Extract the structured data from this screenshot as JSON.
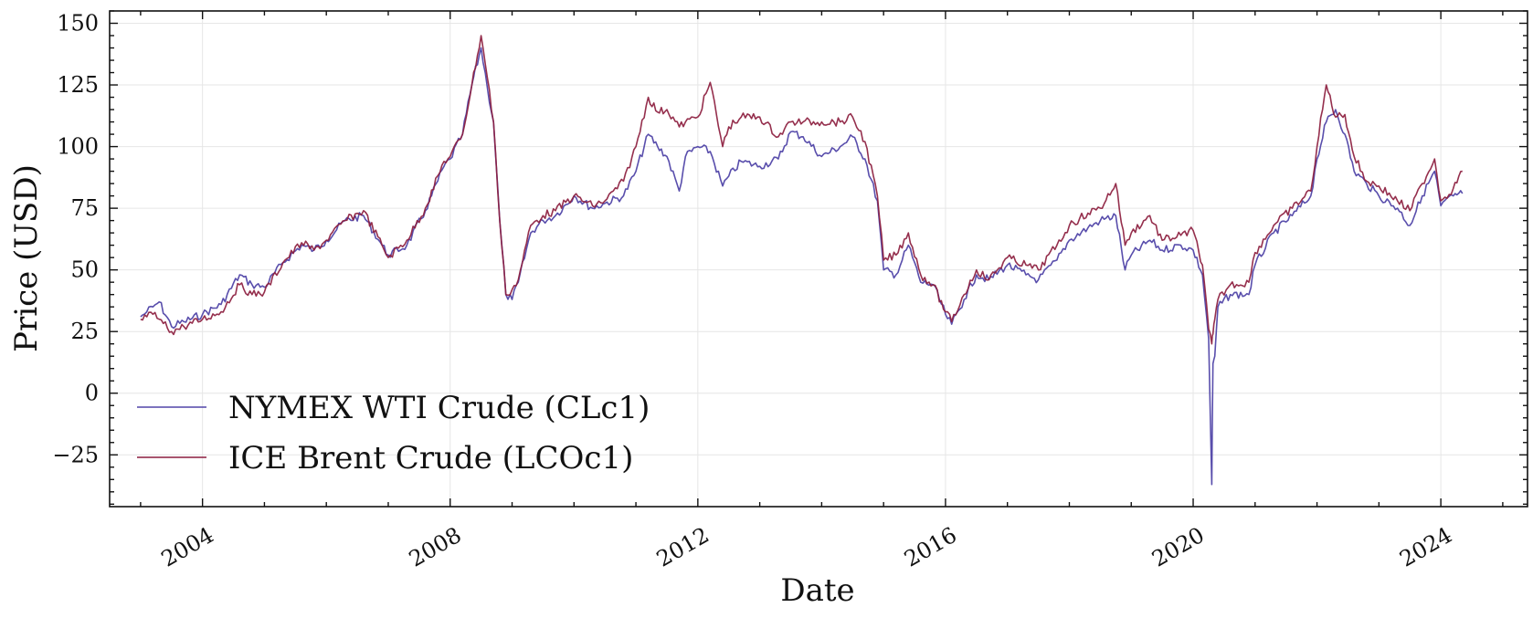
{
  "chart_data": {
    "type": "line",
    "xlabel": "Date",
    "ylabel": "Price (USD)",
    "xlim": [
      2002.5,
      2025.4
    ],
    "ylim": [
      -46,
      155
    ],
    "yticks": [
      -25,
      0,
      25,
      50,
      75,
      100,
      125,
      150
    ],
    "ytick_labels": [
      "−25",
      "0",
      "25",
      "50",
      "75",
      "100",
      "125",
      "150"
    ],
    "xticks": [
      2004,
      2008,
      2012,
      2016,
      2020,
      2024
    ],
    "xtick_labels": [
      "2004",
      "2008",
      "2012",
      "2016",
      "2020",
      "2024"
    ],
    "grid": true,
    "legend_position": "lower-left",
    "series": [
      {
        "name": "NYMEX WTI Crude (CLc1)",
        "color": "#5045a8",
        "x": [
          2003.0,
          2003.1,
          2003.2,
          2003.3,
          2003.5,
          2003.7,
          2004.0,
          2004.3,
          2004.6,
          2004.8,
          2005.0,
          2005.3,
          2005.6,
          2005.8,
          2006.0,
          2006.3,
          2006.6,
          2006.9,
          2007.0,
          2007.3,
          2007.6,
          2007.9,
          2008.0,
          2008.2,
          2008.35,
          2008.5,
          2008.6,
          2008.7,
          2008.8,
          2008.9,
          2009.0,
          2009.1,
          2009.3,
          2009.5,
          2009.7,
          2010.0,
          2010.3,
          2010.5,
          2010.8,
          2011.0,
          2011.2,
          2011.35,
          2011.5,
          2011.7,
          2011.8,
          2012.0,
          2012.2,
          2012.4,
          2012.5,
          2012.7,
          2013.0,
          2013.3,
          2013.5,
          2013.7,
          2014.0,
          2014.3,
          2014.5,
          2014.7,
          2014.9,
          2015.0,
          2015.2,
          2015.4,
          2015.6,
          2015.8,
          2016.0,
          2016.1,
          2016.3,
          2016.5,
          2016.7,
          2017.0,
          2017.3,
          2017.5,
          2017.8,
          2018.0,
          2018.3,
          2018.5,
          2018.75,
          2018.9,
          2019.0,
          2019.3,
          2019.5,
          2019.8,
          2020.0,
          2020.15,
          2020.25,
          2020.3,
          2020.32,
          2020.35,
          2020.4,
          2020.6,
          2020.9,
          2021.0,
          2021.3,
          2021.6,
          2021.9,
          2022.0,
          2022.15,
          2022.3,
          2022.45,
          2022.6,
          2022.8,
          2023.0,
          2023.3,
          2023.5,
          2023.7,
          2023.9,
          2024.0,
          2024.2,
          2024.35
        ],
        "y": [
          31,
          33,
          35,
          37,
          27,
          29,
          32,
          36,
          48,
          44,
          43,
          53,
          60,
          58,
          62,
          70,
          72,
          60,
          56,
          60,
          74,
          92,
          95,
          105,
          125,
          140,
          124,
          110,
          70,
          40,
          38,
          45,
          65,
          70,
          72,
          80,
          75,
          77,
          80,
          90,
          105,
          100,
          96,
          82,
          96,
          100,
          98,
          84,
          88,
          94,
          92,
          95,
          106,
          104,
          96,
          100,
          104,
          95,
          78,
          50,
          48,
          60,
          45,
          44,
          32,
          28,
          38,
          48,
          46,
          52,
          48,
          46,
          54,
          62,
          67,
          70,
          72,
          50,
          56,
          62,
          58,
          60,
          58,
          48,
          22,
          -37,
          12,
          15,
          35,
          40,
          40,
          52,
          65,
          72,
          80,
          95,
          110,
          115,
          105,
          90,
          85,
          80,
          75,
          68,
          80,
          90,
          76,
          80,
          81
        ]
      },
      {
        "name": "ICE Brent Crude (LCOc1)",
        "color": "#8c1d3e",
        "x": [
          2003.0,
          2003.1,
          2003.2,
          2003.3,
          2003.5,
          2003.7,
          2004.0,
          2004.3,
          2004.6,
          2004.8,
          2005.0,
          2005.3,
          2005.6,
          2005.8,
          2006.0,
          2006.3,
          2006.6,
          2006.9,
          2007.0,
          2007.3,
          2007.6,
          2007.9,
          2008.0,
          2008.2,
          2008.35,
          2008.5,
          2008.6,
          2008.7,
          2008.8,
          2008.9,
          2009.0,
          2009.1,
          2009.3,
          2009.5,
          2009.7,
          2010.0,
          2010.3,
          2010.5,
          2010.8,
          2011.0,
          2011.2,
          2011.35,
          2011.5,
          2011.7,
          2011.8,
          2012.0,
          2012.2,
          2012.4,
          2012.5,
          2012.7,
          2013.0,
          2013.3,
          2013.5,
          2013.7,
          2014.0,
          2014.3,
          2014.5,
          2014.7,
          2014.9,
          2015.0,
          2015.2,
          2015.4,
          2015.6,
          2015.8,
          2016.0,
          2016.1,
          2016.3,
          2016.5,
          2016.7,
          2017.0,
          2017.3,
          2017.5,
          2017.8,
          2018.0,
          2018.3,
          2018.5,
          2018.75,
          2018.9,
          2019.0,
          2019.3,
          2019.5,
          2019.8,
          2020.0,
          2020.15,
          2020.25,
          2020.3,
          2020.32,
          2020.35,
          2020.4,
          2020.6,
          2020.9,
          2021.0,
          2021.3,
          2021.6,
          2021.9,
          2022.0,
          2022.15,
          2022.3,
          2022.45,
          2022.6,
          2022.8,
          2023.0,
          2023.3,
          2023.5,
          2023.7,
          2023.9,
          2024.0,
          2024.2,
          2024.35
        ],
        "y": [
          30,
          31,
          32,
          30,
          25,
          27,
          30,
          33,
          44,
          40,
          41,
          53,
          61,
          58,
          62,
          70,
          74,
          60,
          55,
          62,
          75,
          94,
          96,
          105,
          125,
          145,
          128,
          110,
          70,
          40,
          42,
          46,
          68,
          72,
          74,
          80,
          76,
          78,
          86,
          100,
          120,
          114,
          115,
          108,
          110,
          112,
          126,
          100,
          108,
          112,
          112,
          104,
          110,
          110,
          110,
          110,
          112,
          102,
          80,
          54,
          56,
          65,
          48,
          44,
          33,
          29,
          40,
          50,
          46,
          55,
          52,
          50,
          60,
          68,
          73,
          75,
          85,
          60,
          65,
          72,
          62,
          64,
          66,
          52,
          26,
          20,
          24,
          30,
          38,
          44,
          45,
          57,
          68,
          75,
          82,
          100,
          125,
          112,
          113,
          96,
          86,
          84,
          78,
          74,
          85,
          95,
          78,
          83,
          90
        ]
      }
    ]
  }
}
